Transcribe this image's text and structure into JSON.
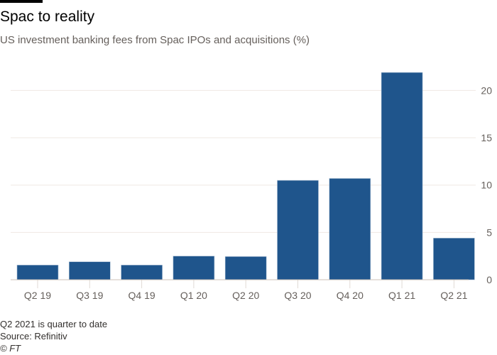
{
  "title": "Spac to reality",
  "subtitle": "US investment banking fees from Spac IPOs and acquisitions (%)",
  "footer": {
    "note": "Q2 2021 is quarter to date",
    "source": "Source: Refinitiv",
    "credit": "© FT"
  },
  "colors": {
    "bar": "#1f558c",
    "grid": "#efe8e3",
    "axis": "#66605c"
  },
  "chart_data": {
    "type": "bar",
    "title": "Spac to reality",
    "subtitle": "US investment banking fees from Spac IPOs and acquisitions (%)",
    "categories": [
      "Q2 19",
      "Q3 19",
      "Q4 19",
      "Q1 20",
      "Q2 20",
      "Q3 20",
      "Q4 20",
      "Q1 21",
      "Q2 21"
    ],
    "values": [
      1.55,
      1.9,
      1.55,
      2.5,
      2.45,
      10.5,
      10.7,
      21.9,
      4.4
    ],
    "ylim": [
      0,
      20
    ],
    "yticks": [
      0,
      5,
      10,
      15,
      20
    ],
    "y_axis_position": "right",
    "grid": true,
    "legend": "none"
  }
}
